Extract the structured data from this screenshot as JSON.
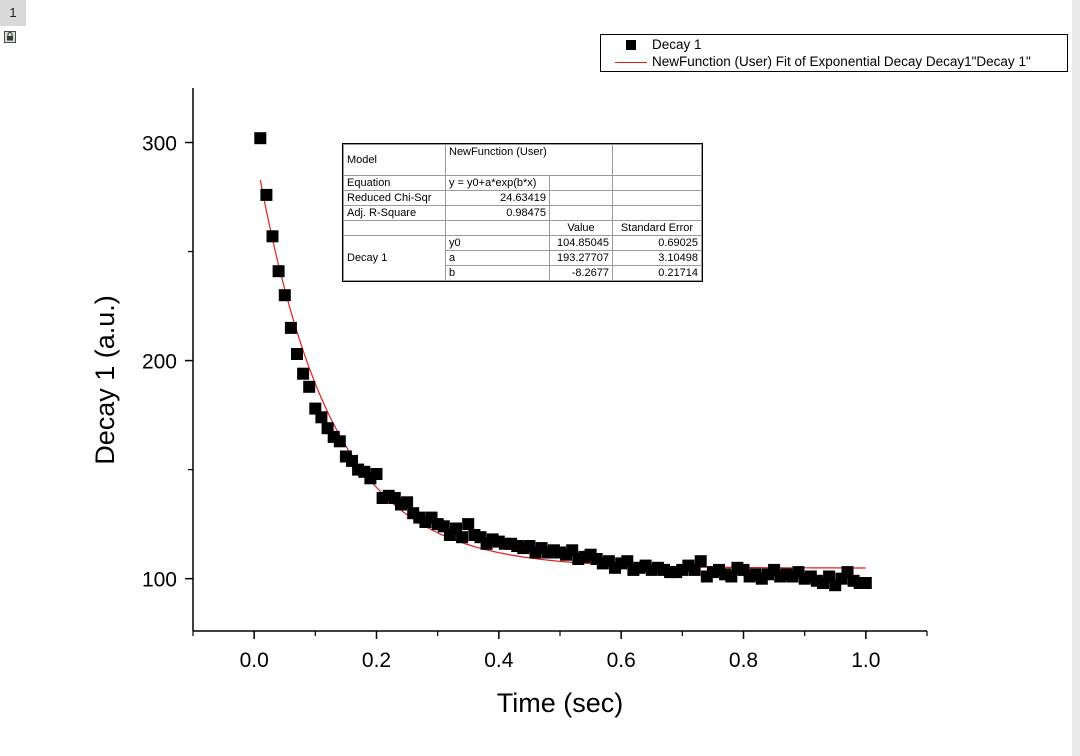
{
  "page": {
    "number": "1"
  },
  "legend": {
    "scatter_label": "Decay 1",
    "fit_label": "NewFunction (User) Fit of Exponential Decay Decay1\"Decay 1\""
  },
  "fit_table": {
    "model_label": "Model",
    "model_value": "NewFunction (User)",
    "equation_label": "Equation",
    "equation_value": "y = y0+a*exp(b*x)",
    "chisqr_label": "Reduced Chi-Sqr",
    "chisqr_value": "24.63419",
    "adjr_label": "Adj. R-Square",
    "adjr_value": "0.98475",
    "value_header": "Value",
    "error_header": "Standard Error",
    "dataset_label": "Decay 1",
    "params": [
      {
        "name": "y0",
        "value": "104.85045",
        "error": "0.69025"
      },
      {
        "name": "a",
        "value": "193.27707",
        "error": "3.10498"
      },
      {
        "name": "b",
        "value": "-8.2677",
        "error": "0.21714"
      }
    ]
  },
  "colors": {
    "fit_line": "#e0201a",
    "points": "#000000"
  },
  "chart_data": {
    "type": "scatter",
    "xlabel": "Time (sec)",
    "ylabel": "Decay 1 (a.u.)",
    "xlim": [
      -0.1,
      1.1
    ],
    "ylim": [
      76,
      325
    ],
    "xticks": [
      0.0,
      0.2,
      0.4,
      0.6,
      0.8,
      1.0
    ],
    "xtick_labels": [
      "0.0",
      "0.2",
      "0.4",
      "0.6",
      "0.8",
      "1.0"
    ],
    "yticks": [
      100,
      200,
      300
    ],
    "ytick_labels": [
      "100",
      "200",
      "300"
    ],
    "grid": false,
    "legend_position": "top-right",
    "series": [
      {
        "name": "Decay 1",
        "marker": "square",
        "x": [
          0.01,
          0.02,
          0.03,
          0.04,
          0.05,
          0.06,
          0.07,
          0.08,
          0.09,
          0.1,
          0.11,
          0.12,
          0.13,
          0.14,
          0.15,
          0.16,
          0.17,
          0.18,
          0.19,
          0.2,
          0.21,
          0.22,
          0.23,
          0.24,
          0.25,
          0.26,
          0.27,
          0.28,
          0.29,
          0.3,
          0.31,
          0.32,
          0.33,
          0.34,
          0.35,
          0.36,
          0.37,
          0.38,
          0.39,
          0.4,
          0.41,
          0.42,
          0.43,
          0.44,
          0.45,
          0.46,
          0.47,
          0.48,
          0.49,
          0.5,
          0.51,
          0.52,
          0.53,
          0.54,
          0.55,
          0.56,
          0.57,
          0.58,
          0.59,
          0.6,
          0.61,
          0.62,
          0.63,
          0.64,
          0.65,
          0.66,
          0.67,
          0.68,
          0.69,
          0.7,
          0.71,
          0.72,
          0.73,
          0.74,
          0.75,
          0.76,
          0.77,
          0.78,
          0.79,
          0.8,
          0.81,
          0.82,
          0.83,
          0.84,
          0.85,
          0.86,
          0.87,
          0.88,
          0.89,
          0.9,
          0.91,
          0.92,
          0.93,
          0.94,
          0.95,
          0.96,
          0.97,
          0.98,
          0.99,
          1.0
        ],
        "y": [
          302,
          276,
          257,
          241,
          230,
          215,
          203,
          194,
          188,
          178,
          174,
          169,
          165,
          163,
          156,
          154,
          150,
          149,
          146,
          148,
          137,
          138,
          137,
          134,
          135,
          130,
          128,
          126,
          128,
          125,
          124,
          120,
          123,
          119,
          125,
          120,
          119,
          116,
          118,
          117,
          116,
          116,
          115,
          114,
          115,
          112,
          114,
          112,
          113,
          112,
          111,
          113,
          109,
          110,
          111,
          109,
          107,
          108,
          105,
          107,
          108,
          104,
          105,
          106,
          104,
          105,
          104,
          103,
          103,
          104,
          106,
          104,
          108,
          101,
          103,
          104,
          102,
          101,
          105,
          104,
          101,
          102,
          100,
          102,
          104,
          101,
          102,
          101,
          103,
          100,
          101,
          99,
          98,
          101,
          97,
          100,
          103,
          99,
          98,
          98
        ]
      },
      {
        "name": "NewFunction (User) Fit of Exponential Decay Decay1\"Decay 1\"",
        "type": "line",
        "equation": "y = y0+a*exp(b*x)",
        "params": {
          "y0": 104.85045,
          "a": 193.27707,
          "b": -8.2677
        },
        "x_range": [
          0.01,
          1.0
        ]
      }
    ]
  }
}
